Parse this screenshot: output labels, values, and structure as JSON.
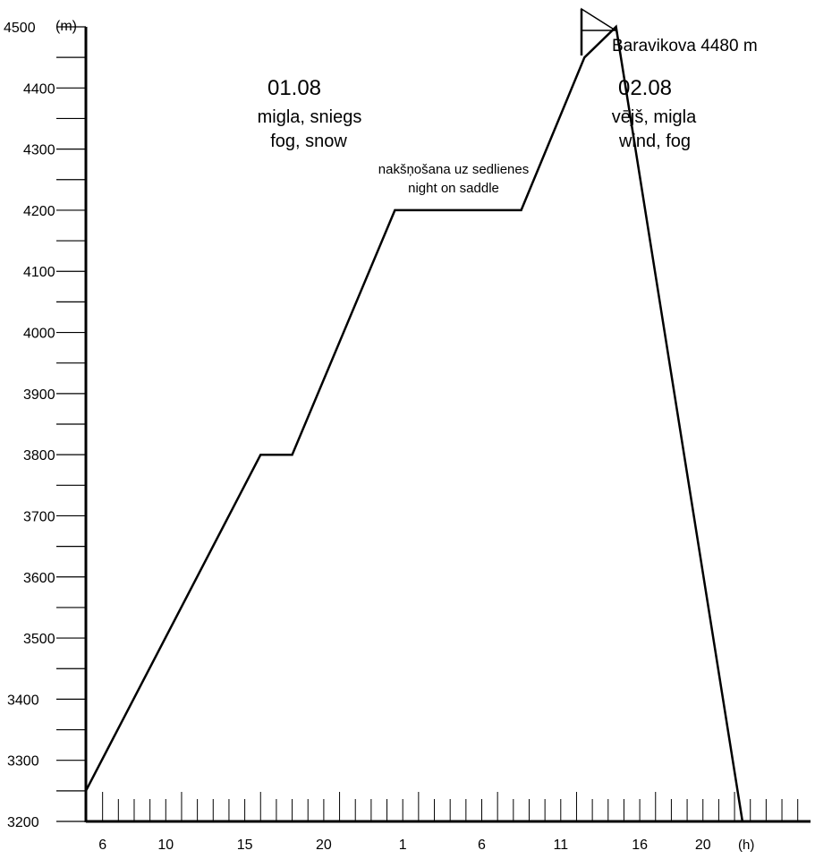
{
  "chart_data": {
    "type": "line",
    "title": "",
    "xlabel": "",
    "ylabel": "",
    "y_unit": "(m)",
    "x_unit": "(h)",
    "ylim": [
      3200,
      4500
    ],
    "y_ticks": [
      3200,
      3300,
      3400,
      3500,
      3600,
      3700,
      3800,
      3900,
      4000,
      4100,
      4200,
      4300,
      4400,
      4500
    ],
    "x_tick_labels": [
      "6",
      "10",
      "15",
      "20",
      "1",
      "6",
      "11",
      "16",
      "20"
    ],
    "series": [
      {
        "x_hours": [
          0,
          11,
          13,
          19.5,
          27.5,
          31.5,
          33.5,
          41.5
        ],
        "altitude_m": [
          3250,
          3800,
          3800,
          4200,
          4200,
          4450,
          4500,
          3200
        ]
      }
    ],
    "annotations": {
      "day1_date": "01.08",
      "day1_weather_lv": "migla, sniegs",
      "day1_weather_en": "fog, snow",
      "saddle_lv": "nakšņošana uz sedlienes",
      "saddle_en": "night on saddle",
      "summit": "Baravikova 4480 m",
      "day2_date": "02.08",
      "day2_weather_lv": "vējš, migla",
      "day2_weather_en": "wind, fog"
    },
    "grid": false
  }
}
